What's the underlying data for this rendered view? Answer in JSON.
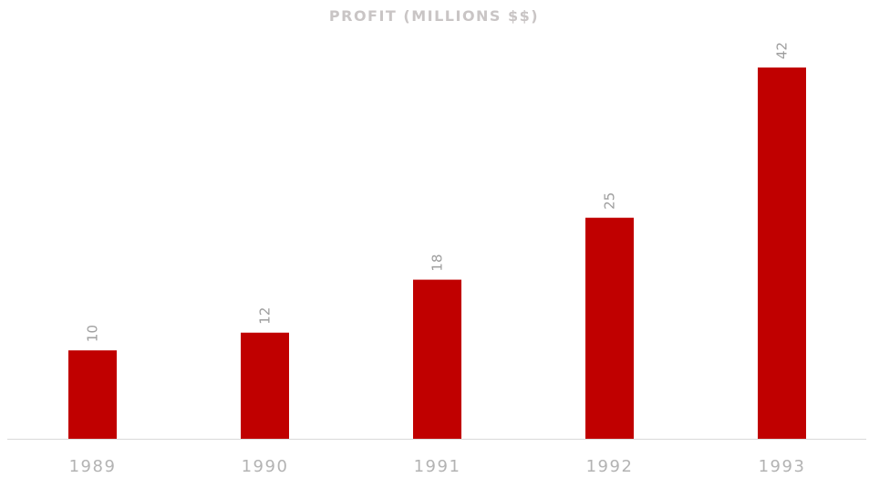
{
  "chart_data": {
    "type": "bar",
    "title": "PROFIT (MILLIONS $$)",
    "categories": [
      "1989",
      "1990",
      "1991",
      "1992",
      "1993"
    ],
    "series": [
      {
        "values": [
          10,
          12,
          18,
          25,
          42
        ]
      }
    ],
    "xlabel": "",
    "ylabel": "",
    "ylim": [
      0,
      42
    ],
    "grid": false,
    "legend": "none",
    "data_labels": true,
    "colors": {
      "bar": "#c00000",
      "axis": "#d9d9d9",
      "title": "#c9c5c5",
      "tick": "#b3b3b3",
      "data_label": "#9e9e9e"
    }
  }
}
